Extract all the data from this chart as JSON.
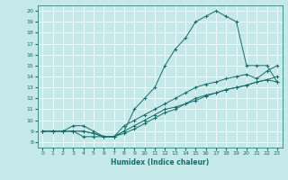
{
  "xlabel": "Humidex (Indice chaleur)",
  "bg_color": "#c5e8e8",
  "line_color": "#1a6b6b",
  "xlim": [
    -0.5,
    23.5
  ],
  "ylim": [
    7.5,
    20.5
  ],
  "xticks": [
    0,
    1,
    2,
    3,
    4,
    5,
    6,
    7,
    8,
    9,
    10,
    11,
    12,
    13,
    14,
    15,
    16,
    17,
    18,
    19,
    20,
    21,
    22,
    23
  ],
  "yticks": [
    8,
    9,
    10,
    11,
    12,
    13,
    14,
    15,
    16,
    17,
    18,
    19,
    20
  ],
  "lines": [
    {
      "x": [
        0,
        1,
        2,
        3,
        4,
        5,
        6,
        7,
        8,
        9,
        10,
        11,
        12,
        13,
        14,
        15,
        16,
        17,
        18,
        19,
        20,
        21,
        22,
        23
      ],
      "y": [
        9,
        9,
        9,
        9,
        8.5,
        8.5,
        8.5,
        8.5,
        9,
        11,
        12,
        13,
        15,
        16.5,
        17.5,
        19,
        19.5,
        20,
        19.5,
        19,
        15,
        15,
        15,
        13.5
      ]
    },
    {
      "x": [
        0,
        1,
        2,
        3,
        4,
        5,
        6,
        7,
        8,
        9,
        10,
        11,
        12,
        13,
        14,
        15,
        16,
        17,
        18,
        19,
        20,
        21,
        22,
        23
      ],
      "y": [
        9,
        9,
        9,
        9.5,
        9.5,
        9,
        8.5,
        8.5,
        9.5,
        10,
        10.5,
        11,
        11.5,
        12,
        12.5,
        13,
        13.3,
        13.5,
        13.8,
        14,
        14.2,
        13.8,
        14.5,
        15
      ]
    },
    {
      "x": [
        0,
        1,
        2,
        3,
        4,
        5,
        6,
        7,
        8,
        9,
        10,
        11,
        12,
        13,
        14,
        15,
        16,
        17,
        18,
        19,
        20,
        21,
        22,
        23
      ],
      "y": [
        9,
        9,
        9,
        9,
        9,
        8.8,
        8.5,
        8.5,
        9,
        9.5,
        10,
        10.5,
        11,
        11.2,
        11.5,
        12,
        12.3,
        12.5,
        12.8,
        13,
        13.2,
        13.5,
        13.7,
        14
      ]
    },
    {
      "x": [
        0,
        1,
        2,
        3,
        4,
        5,
        6,
        7,
        8,
        9,
        10,
        11,
        12,
        13,
        14,
        15,
        16,
        17,
        18,
        19,
        20,
        21,
        22,
        23
      ],
      "y": [
        9,
        9,
        9,
        9,
        9,
        8.8,
        8.5,
        8.5,
        8.8,
        9.2,
        9.7,
        10.2,
        10.7,
        11,
        11.5,
        11.8,
        12.2,
        12.5,
        12.8,
        13,
        13.2,
        13.5,
        13.7,
        13.5
      ]
    }
  ]
}
